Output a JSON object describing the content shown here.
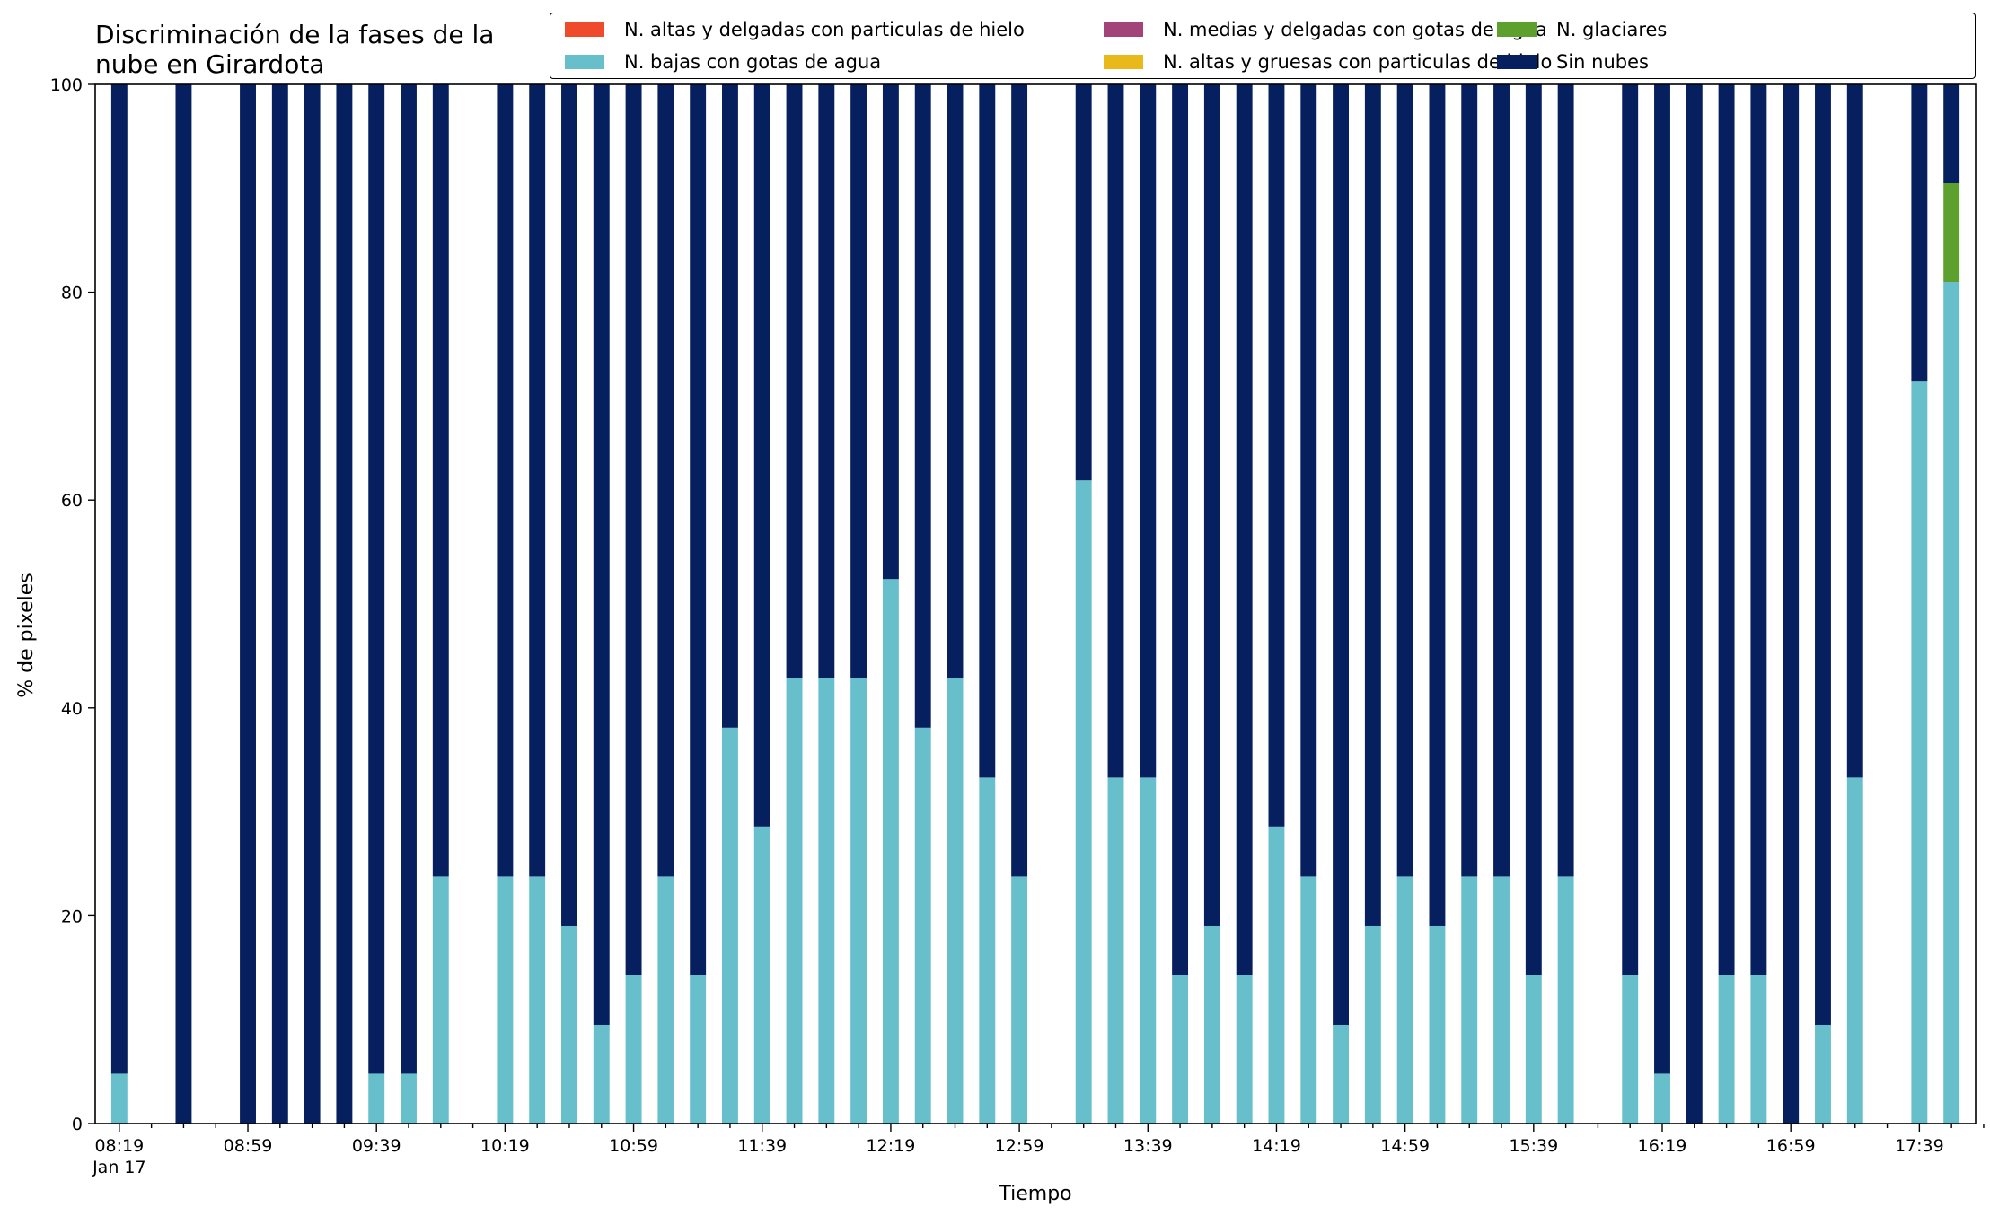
{
  "chart_data": {
    "type": "bar",
    "stacked": true,
    "title": "Discriminación de la fases de la nube en Girardota",
    "xlabel": "Tiempo",
    "ylabel": "% de pixeles",
    "ylim": [
      0,
      100
    ],
    "yticks": [
      0,
      20,
      40,
      60,
      80,
      100
    ],
    "x_tick_labels": [
      "08:19",
      "08:59",
      "09:39",
      "10:19",
      "10:59",
      "11:39",
      "12:19",
      "12:59",
      "13:39",
      "14:19",
      "14:59",
      "15:39",
      "16:19",
      "16:59",
      "17:39"
    ],
    "x_date_label": "Jan 17",
    "grid": false,
    "legend_position": "top-right",
    "times": [
      "08:19",
      "08:29",
      "08:39",
      "08:49",
      "08:59",
      "09:09",
      "09:19",
      "09:29",
      "09:39",
      "09:49",
      "09:59",
      "10:09",
      "10:19",
      "10:29",
      "10:39",
      "10:49",
      "10:59",
      "11:09",
      "11:19",
      "11:29",
      "11:39",
      "11:49",
      "11:59",
      "12:09",
      "12:19",
      "12:29",
      "12:39",
      "12:49",
      "12:59",
      "13:09",
      "13:19",
      "13:29",
      "13:39",
      "13:49",
      "13:59",
      "14:09",
      "14:19",
      "14:29",
      "14:39",
      "14:49",
      "14:59",
      "15:09",
      "15:19",
      "15:29",
      "15:39",
      "15:49",
      "15:59",
      "16:09",
      "16:19",
      "16:29",
      "16:39",
      "16:49",
      "16:59",
      "17:09",
      "17:19",
      "17:29",
      "17:39",
      "17:49"
    ],
    "series": [
      {
        "name": "N. altas y delgadas con particulas de hielo",
        "color": "#f04a2d",
        "values": [
          0,
          null,
          0,
          null,
          0,
          0,
          0,
          0,
          0,
          0,
          0,
          null,
          0,
          0,
          0,
          0,
          0,
          0,
          0,
          0,
          0,
          0,
          0,
          0,
          0,
          0,
          0,
          0,
          0,
          null,
          0,
          0,
          0,
          0,
          0,
          0,
          0,
          0,
          0,
          0,
          0,
          0,
          0,
          0,
          0,
          0,
          null,
          0,
          0,
          0,
          0,
          0,
          0,
          0,
          0,
          null,
          0,
          0
        ]
      },
      {
        "name": "N. altas y gruesas con particulas de hielo",
        "color": "#e8b918",
        "values": [
          0,
          null,
          0,
          null,
          0,
          0,
          0,
          0,
          0,
          0,
          0,
          null,
          0,
          0,
          0,
          0,
          0,
          0,
          0,
          0,
          0,
          0,
          0,
          0,
          0,
          0,
          0,
          0,
          0,
          null,
          0,
          0,
          0,
          0,
          0,
          0,
          0,
          0,
          0,
          0,
          0,
          0,
          0,
          0,
          0,
          0,
          null,
          0,
          0,
          0,
          0,
          0,
          0,
          0,
          0,
          null,
          0,
          0
        ]
      },
      {
        "name": "N. bajas con gotas de agua",
        "color": "#67bfcb",
        "values": [
          4.8,
          null,
          0,
          null,
          0,
          0,
          0,
          0,
          4.8,
          4.8,
          23.8,
          null,
          23.8,
          23.8,
          19.0,
          9.5,
          14.3,
          23.8,
          14.3,
          38.1,
          28.6,
          42.9,
          42.9,
          42.9,
          52.4,
          38.1,
          42.9,
          33.3,
          23.8,
          null,
          61.9,
          33.3,
          33.3,
          14.3,
          19.0,
          14.3,
          28.6,
          23.8,
          9.5,
          19.0,
          23.8,
          19.0,
          23.8,
          23.8,
          14.3,
          23.8,
          null,
          14.3,
          4.8,
          0,
          14.3,
          14.3,
          0,
          9.5,
          33.3,
          null,
          71.4,
          81.0
        ]
      },
      {
        "name": "N. glaciares",
        "color": "#5ea02e",
        "values": [
          0,
          null,
          0,
          null,
          0,
          0,
          0,
          0,
          0,
          0,
          0,
          null,
          0,
          0,
          0,
          0,
          0,
          0,
          0,
          0,
          0,
          0,
          0,
          0,
          0,
          0,
          0,
          0,
          0,
          null,
          0,
          0,
          0,
          0,
          0,
          0,
          0,
          0,
          0,
          0,
          0,
          0,
          0,
          0,
          0,
          0,
          null,
          0,
          0,
          0,
          0,
          0,
          0,
          0,
          0,
          null,
          0,
          9.5
        ]
      },
      {
        "name": "N. medias y delgadas con gotas de agua",
        "color": "#a2437a",
        "values": [
          0,
          null,
          0,
          null,
          0,
          0,
          0,
          0,
          0,
          0,
          0,
          null,
          0,
          0,
          0,
          0,
          0,
          0,
          0,
          0,
          0,
          0,
          0,
          0,
          0,
          0,
          0,
          0,
          0,
          null,
          0,
          0,
          0,
          0,
          0,
          0,
          0,
          0,
          0,
          0,
          0,
          0,
          0,
          0,
          0,
          0,
          null,
          0,
          0,
          0,
          0,
          0,
          0,
          0,
          0,
          null,
          0,
          0
        ]
      },
      {
        "name": "Sin nubes",
        "color": "#061f5f",
        "values": [
          95.2,
          null,
          100,
          null,
          100,
          100,
          100,
          100,
          95.2,
          95.2,
          76.2,
          null,
          76.2,
          76.2,
          81.0,
          90.5,
          85.7,
          76.2,
          85.7,
          61.9,
          71.4,
          57.1,
          57.1,
          57.1,
          47.6,
          61.9,
          57.1,
          66.7,
          76.2,
          null,
          38.1,
          66.7,
          66.7,
          85.7,
          81.0,
          85.7,
          71.4,
          76.2,
          90.5,
          81.0,
          76.2,
          81.0,
          76.2,
          76.2,
          85.7,
          76.2,
          null,
          85.7,
          95.2,
          100,
          85.7,
          85.7,
          100,
          90.5,
          66.7,
          null,
          28.6,
          9.5
        ]
      }
    ]
  }
}
